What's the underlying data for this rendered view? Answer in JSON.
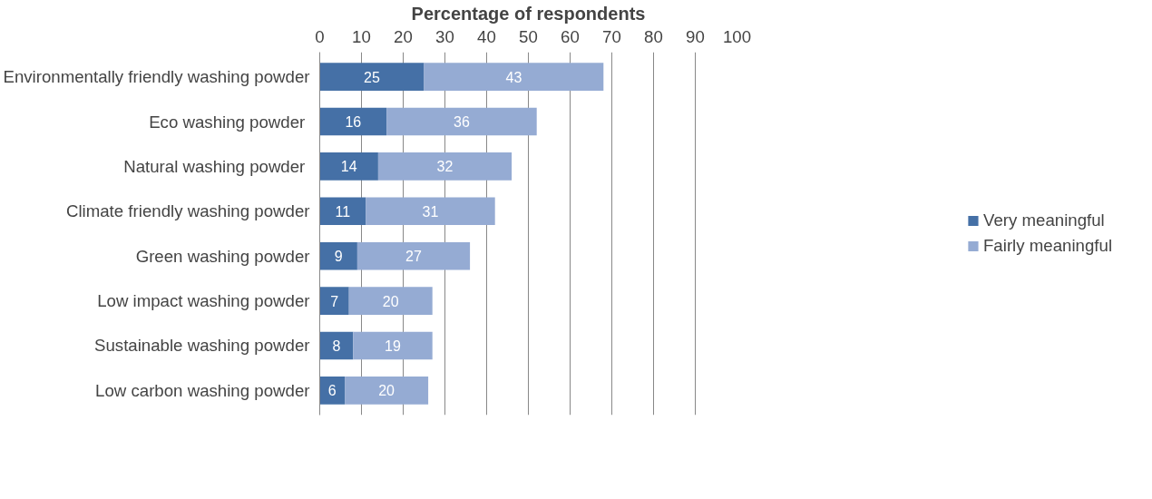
{
  "chart_data": {
    "type": "bar",
    "orientation": "horizontal",
    "stacked": true,
    "xlabel": "Percentage of respondents",
    "categories": [
      "Environmentally friendly washing powder",
      "Eco washing powder ",
      "Natural washing powder ",
      "Climate friendly washing powder",
      "Green washing powder",
      "Low impact washing powder",
      "Sustainable washing powder",
      "Low carbon washing powder"
    ],
    "series": [
      {
        "name": "Very meaningful",
        "color": "#4570a6",
        "values": [
          25,
          16,
          14,
          11,
          9,
          7,
          8,
          6
        ]
      },
      {
        "name": "Fairly meaningful",
        "color": "#95abd3",
        "values": [
          43,
          36,
          32,
          31,
          27,
          20,
          19,
          20
        ]
      }
    ],
    "xlim": [
      0,
      100
    ],
    "xticks": [
      0,
      10,
      20,
      30,
      40,
      50,
      60,
      70,
      80,
      90,
      100
    ],
    "grid": "x",
    "legend": "right",
    "data_labels": true
  }
}
